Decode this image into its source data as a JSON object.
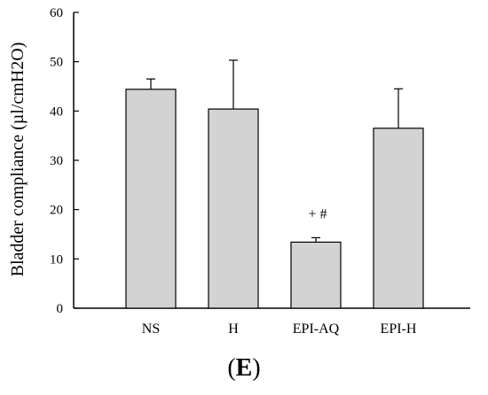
{
  "chart_data": {
    "type": "bar",
    "categories": [
      "NS",
      "H",
      "EPI-AQ",
      "EPI-H"
    ],
    "values": [
      44.4,
      40.4,
      13.4,
      36.5
    ],
    "error_upper": [
      46.5,
      50.3,
      14.3,
      44.5
    ],
    "annotations": [
      {
        "category": "EPI-AQ",
        "text": "+ #"
      }
    ],
    "ylabel": "Bladder compliance (µl/cmH2O)",
    "xlabel": "",
    "ylim": [
      0,
      60
    ],
    "yticks": [
      "0",
      "10",
      "20",
      "30",
      "40",
      "50",
      "60"
    ],
    "bar_color": "#d3d3d3",
    "grid": false
  },
  "panel": {
    "open": "(",
    "letter": "E",
    "close": ")"
  }
}
